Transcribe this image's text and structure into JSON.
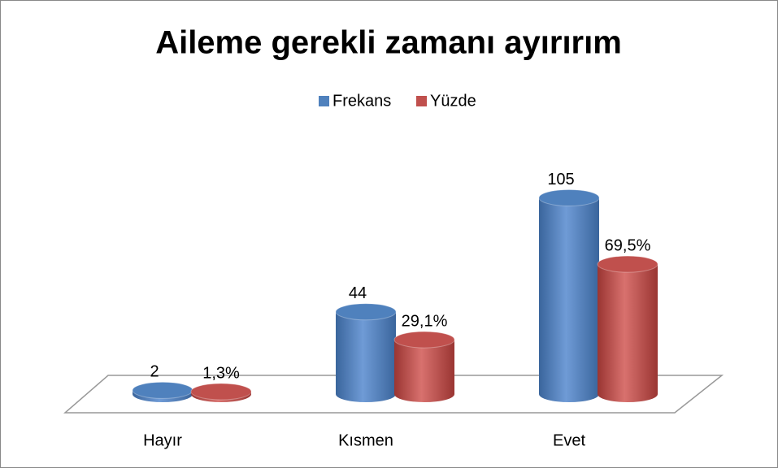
{
  "chart_data": {
    "type": "bar3d",
    "title": "Aileme gerekli zamanı ayırırım",
    "categories": [
      "Hayır",
      "Kısmen",
      "Evet"
    ],
    "series": [
      {
        "name": "Frekans",
        "color": "#4f81bd",
        "values": [
          2,
          44,
          105
        ]
      },
      {
        "name": "Yüzde",
        "color": "#c0504d",
        "values": [
          1.3,
          29.1,
          69.5
        ],
        "value_labels": [
          "1,3%",
          "29,1%",
          "69,5%"
        ]
      }
    ],
    "legend": "top"
  }
}
